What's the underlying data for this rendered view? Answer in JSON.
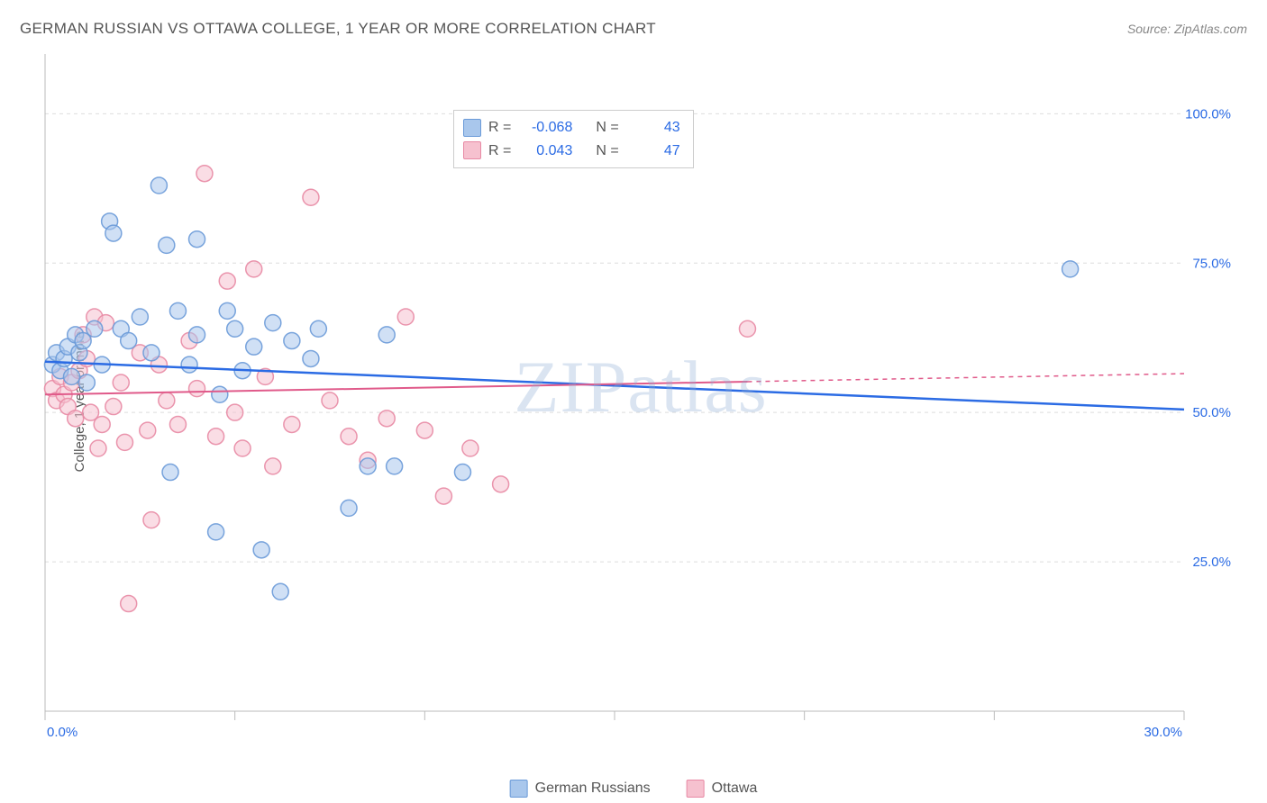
{
  "title": "GERMAN RUSSIAN VS OTTAWA COLLEGE, 1 YEAR OR MORE CORRELATION CHART",
  "source": "Source: ZipAtlas.com",
  "watermark": "ZIPatlas",
  "ylabel": "College, 1 year or more",
  "chart": {
    "type": "scatter",
    "xlim": [
      0,
      30
    ],
    "ylim": [
      0,
      110
    ],
    "xtick_labels": [
      "0.0%",
      "30.0%"
    ],
    "ytick_values": [
      25,
      50,
      75,
      100
    ],
    "ytick_labels": [
      "25.0%",
      "50.0%",
      "75.0%",
      "100.0%"
    ],
    "background_color": "#ffffff",
    "grid_color": "#dddddd",
    "axis_color": "#bbbbbb",
    "marker_radius": 9,
    "marker_opacity": 0.55,
    "series": [
      {
        "name": "German Russians",
        "color_fill": "#a9c7ec",
        "color_stroke": "#6a9ad8",
        "line_color": "#2b6be4",
        "R": "-0.068",
        "N": "43",
        "trend": {
          "x1": 0,
          "y1": 58.5,
          "x2": 30,
          "y2": 50.5,
          "dash_from_x": null
        },
        "points": [
          [
            0.2,
            58
          ],
          [
            0.3,
            60
          ],
          [
            0.4,
            57
          ],
          [
            0.5,
            59
          ],
          [
            0.6,
            61
          ],
          [
            0.7,
            56
          ],
          [
            0.8,
            63
          ],
          [
            0.9,
            60
          ],
          [
            1.0,
            62
          ],
          [
            1.1,
            55
          ],
          [
            1.3,
            64
          ],
          [
            1.5,
            58
          ],
          [
            1.7,
            82
          ],
          [
            1.8,
            80
          ],
          [
            2.0,
            64
          ],
          [
            2.2,
            62
          ],
          [
            2.5,
            66
          ],
          [
            2.8,
            60
          ],
          [
            3.0,
            88
          ],
          [
            3.2,
            78
          ],
          [
            3.3,
            40
          ],
          [
            3.5,
            67
          ],
          [
            3.8,
            58
          ],
          [
            4.0,
            63
          ],
          [
            4.0,
            79
          ],
          [
            4.5,
            30
          ],
          [
            4.6,
            53
          ],
          [
            4.8,
            67
          ],
          [
            5.0,
            64
          ],
          [
            5.2,
            57
          ],
          [
            5.5,
            61
          ],
          [
            5.7,
            27
          ],
          [
            6.0,
            65
          ],
          [
            6.2,
            20
          ],
          [
            6.5,
            62
          ],
          [
            7.0,
            59
          ],
          [
            7.2,
            64
          ],
          [
            8.0,
            34
          ],
          [
            8.5,
            41
          ],
          [
            9.0,
            63
          ],
          [
            9.2,
            41
          ],
          [
            11.0,
            40
          ],
          [
            27.0,
            74
          ]
        ]
      },
      {
        "name": "Ottawa",
        "color_fill": "#f6c1cf",
        "color_stroke": "#e889a4",
        "line_color": "#e05a8a",
        "R": "0.043",
        "N": "47",
        "trend": {
          "x1": 0,
          "y1": 53,
          "x2": 30,
          "y2": 56.5,
          "dash_from_x": 18.5
        },
        "points": [
          [
            0.2,
            54
          ],
          [
            0.3,
            52
          ],
          [
            0.4,
            56
          ],
          [
            0.5,
            53
          ],
          [
            0.6,
            51
          ],
          [
            0.7,
            55
          ],
          [
            0.8,
            49
          ],
          [
            0.9,
            57
          ],
          [
            1.0,
            63
          ],
          [
            1.1,
            59
          ],
          [
            1.2,
            50
          ],
          [
            1.3,
            66
          ],
          [
            1.4,
            44
          ],
          [
            1.5,
            48
          ],
          [
            1.6,
            65
          ],
          [
            1.8,
            51
          ],
          [
            2.0,
            55
          ],
          [
            2.1,
            45
          ],
          [
            2.2,
            18
          ],
          [
            2.5,
            60
          ],
          [
            2.7,
            47
          ],
          [
            2.8,
            32
          ],
          [
            3.0,
            58
          ],
          [
            3.2,
            52
          ],
          [
            3.5,
            48
          ],
          [
            3.8,
            62
          ],
          [
            4.0,
            54
          ],
          [
            4.2,
            90
          ],
          [
            4.5,
            46
          ],
          [
            4.8,
            72
          ],
          [
            5.0,
            50
          ],
          [
            5.2,
            44
          ],
          [
            5.5,
            74
          ],
          [
            5.8,
            56
          ],
          [
            6.0,
            41
          ],
          [
            6.5,
            48
          ],
          [
            7.0,
            86
          ],
          [
            7.5,
            52
          ],
          [
            8.0,
            46
          ],
          [
            8.5,
            42
          ],
          [
            9.0,
            49
          ],
          [
            9.5,
            66
          ],
          [
            10.0,
            47
          ],
          [
            10.5,
            36
          ],
          [
            11.2,
            44
          ],
          [
            12.0,
            38
          ],
          [
            18.5,
            64
          ]
        ]
      }
    ]
  },
  "legend": {
    "series1": "German Russians",
    "series2": "Ottawa"
  },
  "stats_labels": {
    "R": "R =",
    "N": "N ="
  }
}
